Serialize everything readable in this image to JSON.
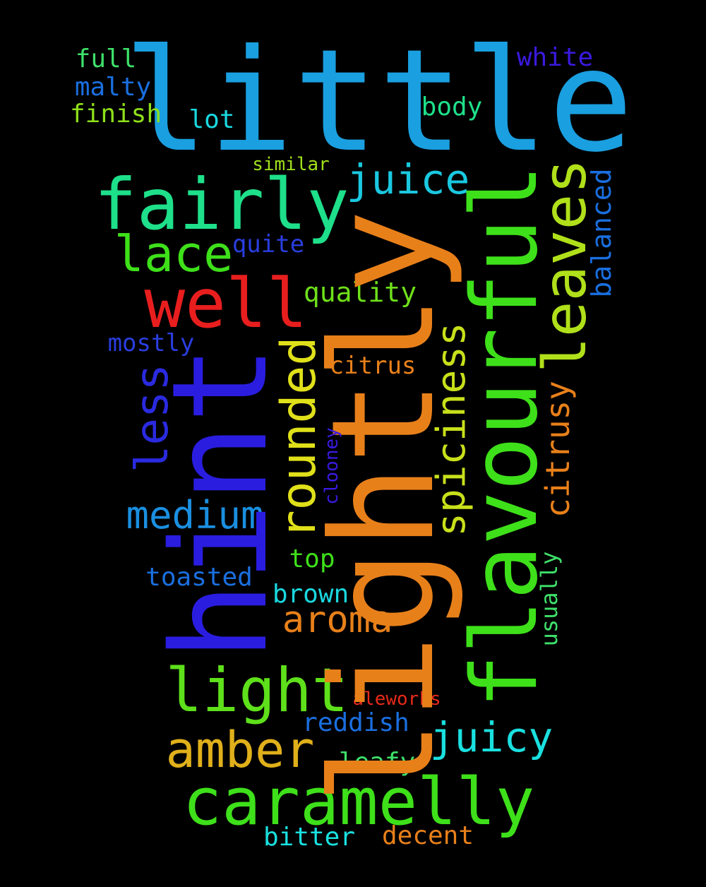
{
  "words": {
    "little": {
      "text": "little",
      "color": "#1a9fe0"
    },
    "lightly": {
      "text": "lightly",
      "color": "#e8801a"
    },
    "hint": {
      "text": "hint",
      "color": "#2a1de0"
    },
    "flavourful": {
      "text": "flavourful",
      "color": "#3ee01a"
    },
    "fairly": {
      "text": "fairly",
      "color": "#1ee08a"
    },
    "caramelly": {
      "text": "caramelly",
      "color": "#3ee01a"
    },
    "well": {
      "text": "well",
      "color": "#e81e1e"
    },
    "leaves": {
      "text": "leaves",
      "color": "#b0e01a"
    },
    "light": {
      "text": "light",
      "color": "#5ee01a"
    },
    "amber": {
      "text": "amber",
      "color": "#e0b01a"
    },
    "rounded": {
      "text": "rounded",
      "color": "#e0e01a"
    },
    "lace": {
      "text": "lace",
      "color": "#3ee01a"
    },
    "juice": {
      "text": "juice",
      "color": "#1ac8e0"
    },
    "spiciness": {
      "text": "spiciness",
      "color": "#c8e01a"
    },
    "less": {
      "text": "less",
      "color": "#2a2ae0"
    },
    "medium": {
      "text": "medium",
      "color": "#1a8fe0"
    },
    "juicy": {
      "text": "juicy",
      "color": "#1ae0e0"
    },
    "aroma": {
      "text": "aroma",
      "color": "#e8801a"
    },
    "citrusy": {
      "text": "citrusy",
      "color": "#e8801a"
    },
    "balanced": {
      "text": "balanced",
      "color": "#1a6fe0"
    },
    "quality": {
      "text": "quality",
      "color": "#6ee01a"
    },
    "citrus": {
      "text": "citrus",
      "color": "#e8801a"
    },
    "mostly": {
      "text": "mostly",
      "color": "#2a3ee0"
    },
    "quite": {
      "text": "quite",
      "color": "#2a3ee0"
    },
    "full": {
      "text": "full",
      "color": "#3ee06a"
    },
    "malty": {
      "text": "malty",
      "color": "#1a6fe0"
    },
    "finish": {
      "text": "finish",
      "color": "#8ee01a"
    },
    "lot": {
      "text": "lot",
      "color": "#1ad8e0"
    },
    "body": {
      "text": "body",
      "color": "#1ee08a"
    },
    "white": {
      "text": "white",
      "color": "#3a1ae0"
    },
    "similar": {
      "text": "similar",
      "color": "#a0e01a"
    },
    "top": {
      "text": "top",
      "color": "#3ee01a"
    },
    "toasted": {
      "text": "toasted",
      "color": "#1a6fe0"
    },
    "brown": {
      "text": "brown",
      "color": "#1ad8e0"
    },
    "usually": {
      "text": "usually",
      "color": "#3ee06a"
    },
    "clooney": {
      "text": "clooney",
      "color": "#3a1ae0"
    },
    "aleworks": {
      "text": "aleworks",
      "color": "#e82a1a"
    },
    "reddish": {
      "text": "reddish",
      "color": "#1a6fe0"
    },
    "leafy": {
      "text": "leafy",
      "color": "#3ee06a"
    },
    "bitter": {
      "text": "bitter",
      "color": "#1ae0e0"
    },
    "decent": {
      "text": "decent",
      "color": "#e8801a"
    }
  }
}
